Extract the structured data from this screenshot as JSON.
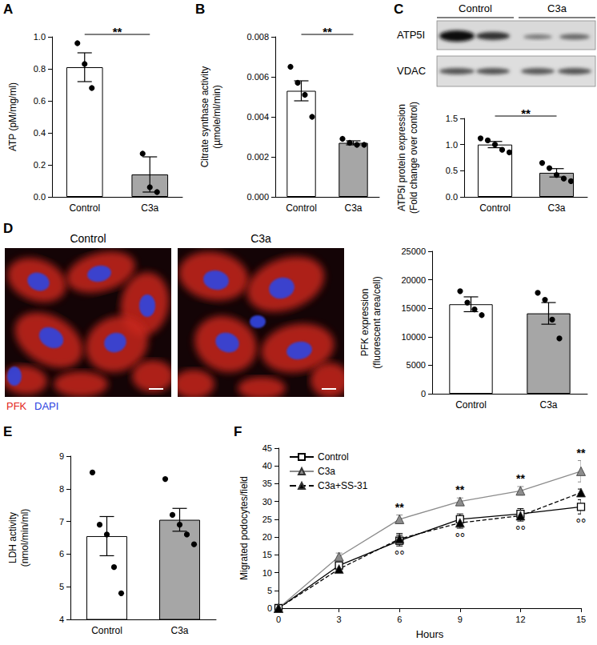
{
  "chart_data": [
    {
      "panel": "A",
      "type": "bar",
      "categories": [
        "Control",
        "C3a"
      ],
      "values": [
        0.81,
        0.14
      ],
      "errors": [
        0.09,
        0.11
      ],
      "points": [
        [
          0.96,
          0.83,
          0.68
        ],
        [
          0.27,
          0.06,
          0.03
        ]
      ],
      "colors": [
        "#ffffff",
        "#a6a6a6"
      ],
      "ylabel": "ATP (pM/mg/ml)",
      "ylim": [
        0,
        1.0
      ],
      "yticks": [
        {
          "value": 0,
          "label": "0.0"
        },
        0.2,
        0.4,
        0.6,
        0.8,
        {
          "value": 1.0,
          "label": "1.0"
        }
      ],
      "annotations": [
        {
          "text": "**"
        }
      ]
    },
    {
      "panel": "B",
      "type": "bar",
      "categories": [
        "Control",
        "C3a"
      ],
      "values": [
        0.0053,
        0.0027
      ],
      "errors": [
        0.0005,
        0.0001
      ],
      "points": [
        [
          0.0065,
          0.0057,
          0.0051,
          0.004
        ],
        [
          0.0029,
          0.0027,
          0.0026,
          0.0026
        ]
      ],
      "colors": [
        "#ffffff",
        "#a6a6a6"
      ],
      "ylabel": "Citrate synthase activity\n(µmole/ml/min)",
      "ylim": [
        0,
        0.008
      ],
      "yticks": [
        {
          "value": 0,
          "label": "0.000"
        },
        {
          "value": 0.002,
          "label": "0.002"
        },
        {
          "value": 0.004,
          "label": "0.004"
        },
        {
          "value": 0.006,
          "label": "0.006"
        },
        {
          "value": 0.008,
          "label": "0.008"
        }
      ],
      "annotations": [
        {
          "text": "**"
        }
      ]
    },
    {
      "panel": "C",
      "type": "bar",
      "categories": [
        "Control",
        "C3a"
      ],
      "values": [
        1.0,
        0.46
      ],
      "errors": [
        0.06,
        0.08
      ],
      "points": [
        [
          1.12,
          1.08,
          1.0,
          0.9,
          0.85
        ],
        [
          0.65,
          0.55,
          0.42,
          0.35,
          0.3
        ]
      ],
      "colors": [
        "#ffffff",
        "#a6a6a6"
      ],
      "ylabel": "ATP5I protein expression\n(Fold change over control)",
      "ylim": [
        0,
        1.5
      ],
      "yticks": [
        {
          "value": 0,
          "label": "0.0"
        },
        0.5,
        {
          "value": 1.0,
          "label": "1.0"
        },
        1.5
      ],
      "annotations": [
        {
          "text": "**"
        }
      ],
      "blot": {
        "groups": [
          "Control",
          "C3a"
        ],
        "rows": [
          "ATP5I",
          "VDAC"
        ]
      }
    },
    {
      "panel": "D",
      "type": "bar",
      "categories": [
        "Control",
        "C3a"
      ],
      "values": [
        15700,
        14100
      ],
      "errors": [
        1300,
        1900
      ],
      "points": [
        [
          18000,
          16000,
          14800,
          13800
        ],
        [
          17700,
          16500,
          13000,
          9700
        ]
      ],
      "colors": [
        "#ffffff",
        "#a6a6a6"
      ],
      "ylabel": "PFK expression\n(fluorescent area/cell)",
      "ylim": [
        0,
        25000
      ],
      "yticks": [
        0,
        5000,
        10000,
        15000,
        20000,
        25000
      ],
      "images": {
        "titles": [
          "Control",
          "C3a"
        ],
        "stains": [
          {
            "text": "PFK",
            "color": "#e3261c"
          },
          {
            "text": "DAPI",
            "color": "#2b3fe0"
          }
        ]
      }
    },
    {
      "panel": "E",
      "type": "bar",
      "categories": [
        "Control",
        "C3a"
      ],
      "values": [
        6.55,
        7.05
      ],
      "errors": [
        0.6,
        0.35
      ],
      "points": [
        [
          8.5,
          6.9,
          6.6,
          5.6,
          4.8
        ],
        [
          8.3,
          7.2,
          6.9,
          6.6,
          6.3
        ]
      ],
      "colors": [
        "#ffffff",
        "#a6a6a6"
      ],
      "ylabel": "LDH activity\n(nmol/min/ml)",
      "ylim": [
        4,
        9
      ],
      "yticks": [
        4,
        5,
        6,
        7,
        8,
        9
      ]
    },
    {
      "panel": "F",
      "type": "line",
      "x": [
        0,
        3,
        6,
        9,
        12,
        15
      ],
      "xlabel": "Hours",
      "ylabel": "Migrated podocytes/field",
      "xlim": [
        0,
        15
      ],
      "xticks": [
        0,
        3,
        6,
        9,
        12,
        15
      ],
      "ylim": [
        0,
        45
      ],
      "yticks": [
        0,
        5,
        10,
        15,
        20,
        25,
        30,
        35,
        40,
        45
      ],
      "legend": "top-left",
      "series": [
        {
          "name": "Control",
          "color": "#000000",
          "marker": "square-open",
          "line_style": "solid",
          "values": [
            0,
            12,
            19,
            25,
            26.5,
            28.5
          ],
          "errors": [
            0,
            1,
            1.5,
            1.5,
            1.5,
            2
          ]
        },
        {
          "name": "C3a",
          "color": "#8c8c8c",
          "marker": "triangle",
          "line_style": "solid",
          "values": [
            0,
            14.5,
            25,
            30,
            33,
            38.5
          ],
          "errors": [
            0,
            1,
            1.2,
            1,
            1.2,
            3
          ]
        },
        {
          "name": "C3a+SS-31",
          "color": "#000000",
          "marker": "triangle",
          "line_style": "dashed",
          "values": [
            0,
            11,
            19.5,
            24,
            26,
            32.5
          ],
          "errors": [
            0,
            0.8,
            1.5,
            1.5,
            1.5,
            1
          ]
        }
      ],
      "annotations": [
        {
          "x": [
            6,
            9,
            12,
            15
          ],
          "text": "**"
        },
        {
          "x": [
            6,
            9,
            12,
            15
          ],
          "text": "°°"
        }
      ]
    }
  ]
}
